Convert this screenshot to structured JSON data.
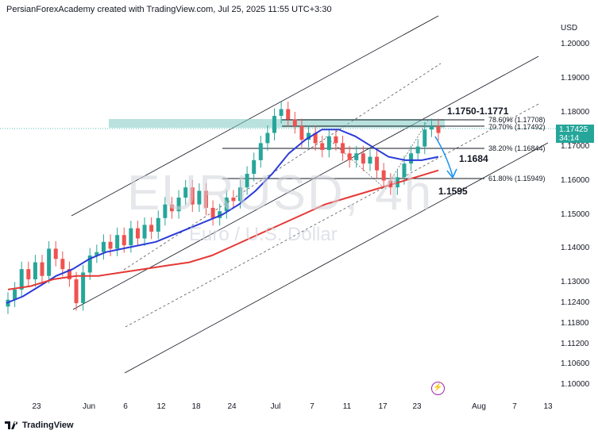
{
  "header": {
    "text": "PersianForexAcademy created with TradingView.com, Jul 25, 2025 11:55 UTC+3:30"
  },
  "watermark": {
    "symbol": "EURUSD, 4h",
    "description": "Euro / U.S. Dollar"
  },
  "price_axis": {
    "currency": "USD",
    "ticks": [
      "1.20000",
      "1.19000",
      "1.18000",
      "1.17000",
      "1.16000",
      "1.15000",
      "1.14000",
      "1.13000",
      "1.12400",
      "1.11800",
      "1.11200",
      "1.10600",
      "1.10000"
    ]
  },
  "time_axis": {
    "ticks": [
      "23",
      "Jun",
      "6",
      "12",
      "18",
      "24",
      "Jul",
      "7",
      "11",
      "17",
      "23",
      "Aug",
      "7",
      "13"
    ]
  },
  "price_tag": {
    "price": "1.17425",
    "countdown": "34:14"
  },
  "annotations": {
    "zone_label": "1.1750-1.1771",
    "level_1": "1.1684",
    "level_2": "1.1595"
  },
  "fib_levels": [
    {
      "label": "78.60% (1.17708)",
      "price": 1.17708
    },
    {
      "label": "70.70% (1.17492)",
      "price": 1.17492
    },
    {
      "label": "38.20% (1.16844)",
      "price": 1.16844
    },
    {
      "label": "61.80% (1.15949)",
      "price": 1.15949
    }
  ],
  "footer": {
    "brand": "TradingView"
  },
  "colors": {
    "ma_fast": "#2b3bd9",
    "ma_slow": "#e53935",
    "up": "#26a69a",
    "down": "#ef5350",
    "zone": "#80cbc4",
    "arrow": "#2196f3"
  },
  "chart_data": {
    "type": "candlestick",
    "symbol": "EURUSD",
    "timeframe": "4h",
    "ylim": [
      1.096,
      1.205
    ],
    "close_samples": [
      1.125,
      1.128,
      1.134,
      1.131,
      1.136,
      1.132,
      1.14,
      1.137,
      1.134,
      1.131,
      1.124,
      1.133,
      1.138,
      1.139,
      1.142,
      1.14,
      1.144,
      1.141,
      1.146,
      1.143,
      1.147,
      1.145,
      1.149,
      1.153,
      1.151,
      1.155,
      1.158,
      1.153,
      1.157,
      1.152,
      1.149,
      1.151,
      1.155,
      1.154,
      1.158,
      1.162,
      1.166,
      1.171,
      1.174,
      1.179,
      1.181,
      1.178,
      1.176,
      1.172,
      1.174,
      1.171,
      1.169,
      1.173,
      1.171,
      1.168,
      1.166,
      1.168,
      1.165,
      1.167,
      1.163,
      1.16,
      1.158,
      1.161,
      1.165,
      1.168,
      1.17,
      1.175,
      1.176,
      1.174
    ],
    "moving_averages": [
      {
        "color": "blue",
        "values": [
          1.124,
          1.126,
          1.129,
          1.132,
          1.134,
          1.137,
          1.139,
          1.14,
          1.141,
          1.142,
          1.144,
          1.146,
          1.148,
          1.15,
          1.153,
          1.157,
          1.162,
          1.168,
          1.172,
          1.175,
          1.175,
          1.173,
          1.17,
          1.167,
          1.166,
          1.166,
          1.167
        ]
      },
      {
        "color": "red",
        "values": [
          1.128,
          1.129,
          1.131,
          1.132,
          1.132,
          1.133,
          1.134,
          1.135,
          1.136,
          1.138,
          1.141,
          1.144,
          1.147,
          1.15,
          1.153,
          1.155,
          1.157,
          1.159,
          1.161,
          1.163
        ]
      }
    ]
  }
}
